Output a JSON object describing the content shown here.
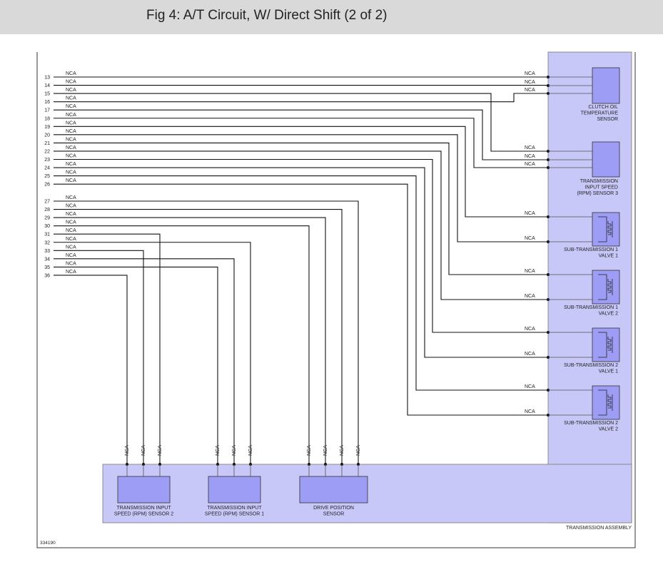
{
  "header": {
    "title": "Fig 4: A/T Circuit, W/ Direct Shift (2 of 2)"
  },
  "wires": [
    {
      "pin": "13",
      "label": "NCA"
    },
    {
      "pin": "14",
      "label": "NCA"
    },
    {
      "pin": "15",
      "label": "NCA"
    },
    {
      "pin": "16",
      "label": "NCA"
    },
    {
      "pin": "17",
      "label": "NCA"
    },
    {
      "pin": "18",
      "label": "NCA"
    },
    {
      "pin": "19",
      "label": "NCA"
    },
    {
      "pin": "20",
      "label": "NCA"
    },
    {
      "pin": "21",
      "label": "NCA"
    },
    {
      "pin": "22",
      "label": "NCA"
    },
    {
      "pin": "23",
      "label": "NCA"
    },
    {
      "pin": "24",
      "label": "NCA"
    },
    {
      "pin": "25",
      "label": "NCA"
    },
    {
      "pin": "26",
      "label": "NCA"
    },
    {
      "pin": "27",
      "label": "NCA"
    },
    {
      "pin": "28",
      "label": "NCA"
    },
    {
      "pin": "29",
      "label": "NCA"
    },
    {
      "pin": "30",
      "label": "NCA"
    },
    {
      "pin": "31",
      "label": "NCA"
    },
    {
      "pin": "32",
      "label": "NCA"
    },
    {
      "pin": "33",
      "label": "NCA"
    },
    {
      "pin": "34",
      "label": "NCA"
    },
    {
      "pin": "35",
      "label": "NCA"
    },
    {
      "pin": "36",
      "label": "NCA"
    }
  ],
  "right_labels": [
    "NCA",
    "NCA",
    "NCA",
    "NCA",
    "NCA",
    "NCA",
    "NCA",
    "NCA",
    "NCA",
    "NCA",
    "NCA",
    "NCA",
    "NCA",
    "NCA"
  ],
  "bottom_labels": [
    "NCA",
    "NCA",
    "NCA",
    "NCA",
    "NCA",
    "NCA",
    "NCA",
    "NCA",
    "NCA",
    "NCA"
  ],
  "components": [
    {
      "lines": [
        "CLUTCH OIL",
        "TEMPERATURE",
        "SENSOR"
      ]
    },
    {
      "lines": [
        "TRANSMISSION",
        "INPUT SPEED",
        "(RPM) SENSOR 3"
      ]
    },
    {
      "lines": [
        "SUB-TRANSMISSION 1",
        "VALVE 1"
      ]
    },
    {
      "lines": [
        "SUB-TRANSMISSION 1",
        "VALVE 2"
      ]
    },
    {
      "lines": [
        "SUB-TRANSMISSION 2",
        "VALVE 1"
      ]
    },
    {
      "lines": [
        "SUB-TRANSMISSION 2",
        "VALVE 2"
      ]
    },
    {
      "lines": [
        "TRANSMISSION INPUT",
        "SPEED (RPM) SENSOR 2"
      ]
    },
    {
      "lines": [
        "TRANSMISSION INPUT",
        "SPEED (RPM) SENSOR 1"
      ]
    },
    {
      "lines": [
        "DRIVE POSITION",
        "SENSOR"
      ]
    }
  ],
  "assembly_label": "TRANSMISSION ASSEMBLY",
  "figure_number": "334190"
}
